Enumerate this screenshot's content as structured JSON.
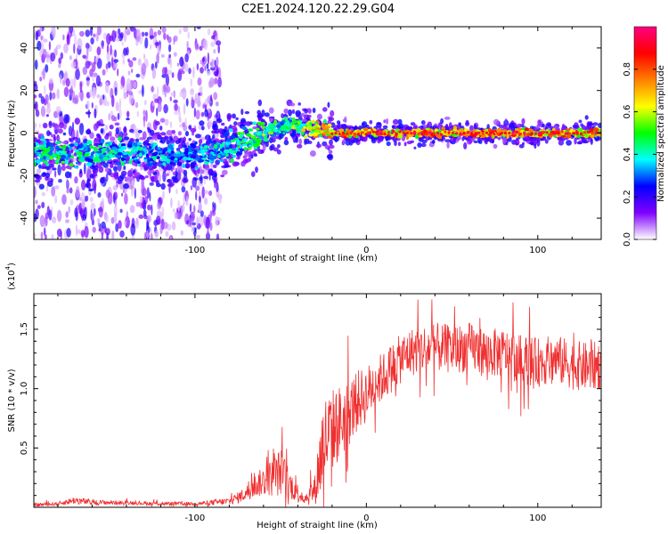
{
  "title": "C2E1.2024.120.22.29.G04",
  "chart_data": [
    {
      "type": "heatmap",
      "xlabel": "Height of straight line (km)",
      "ylabel": "Frequency (Hz)",
      "xlim": [
        -194,
        137
      ],
      "ylim": [
        -50,
        50
      ],
      "xticks": [
        -100,
        0,
        100
      ],
      "yticks": [
        -40,
        -20,
        0,
        20,
        40
      ],
      "colorbar": {
        "label": "Normalized spectral amplitude",
        "range": [
          0,
          1
        ],
        "ticks": [
          0.0,
          0.2,
          0.4,
          0.6,
          0.8
        ],
        "tick_labels": [
          "0.0",
          "0.2",
          "0.4",
          "0.6",
          "0.8"
        ],
        "colors": [
          "#ffffff",
          "#8000ff",
          "#0000ff",
          "#00ffff",
          "#00ff00",
          "#ffff00",
          "#ff8000",
          "#ff0000",
          "#ff0080"
        ]
      },
      "ridge": {
        "x": [
          -194,
          -180,
          -160,
          -140,
          -120,
          -100,
          -90,
          -80,
          -70,
          -60,
          -50,
          -45,
          -40,
          -35,
          -30,
          -25,
          -20,
          -10,
          0,
          10,
          20,
          30,
          40,
          50,
          60,
          70,
          80,
          90,
          100,
          110,
          120,
          137
        ],
        "y": [
          -9,
          -9,
          -10,
          -9,
          -10,
          -11,
          -9,
          -6,
          -3,
          0,
          3,
          5,
          4,
          3,
          2,
          1,
          0,
          0,
          0,
          0,
          0,
          0,
          0,
          0,
          0,
          0,
          0,
          0,
          0,
          0,
          0,
          0
        ],
        "amplitude": [
          0.45,
          0.5,
          0.45,
          0.42,
          0.4,
          0.35,
          0.4,
          0.45,
          0.5,
          0.55,
          0.5,
          0.5,
          0.6,
          0.65,
          0.7,
          0.75,
          0.8,
          0.85,
          0.85,
          0.85,
          0.85,
          0.85,
          0.85,
          0.85,
          0.85,
          0.85,
          0.85,
          0.85,
          0.85,
          0.85,
          0.85,
          0.85
        ]
      },
      "noise_region_x": [
        -194,
        -85
      ]
    },
    {
      "type": "line",
      "xlabel": "Height of straight line (km)",
      "ylabel": "SNR (10 * v/v)",
      "y_multiplier_label": "(x10",
      "y_multiplier_exp": "4",
      "xlim": [
        -194,
        137
      ],
      "ylim": [
        0,
        1.8
      ],
      "xticks": [
        -100,
        0,
        100
      ],
      "yticks": [
        0.5,
        1.0,
        1.5
      ],
      "color": "#f03030",
      "envelope": {
        "x": [
          -194,
          -180,
          -170,
          -160,
          -140,
          -120,
          -100,
          -90,
          -80,
          -75,
          -70,
          -65,
          -60,
          -55,
          -50,
          -45,
          -40,
          -35,
          -30,
          -27,
          -25,
          -20,
          -15,
          -10,
          -5,
          0,
          5,
          10,
          15,
          20,
          25,
          30,
          40,
          50,
          60,
          70,
          80,
          90,
          100,
          110,
          120,
          130,
          137
        ],
        "y": [
          0.02,
          0.03,
          0.06,
          0.04,
          0.04,
          0.03,
          0.03,
          0.04,
          0.05,
          0.08,
          0.12,
          0.18,
          0.22,
          0.25,
          0.3,
          0.2,
          0.12,
          0.08,
          0.15,
          0.4,
          0.55,
          0.65,
          0.72,
          0.8,
          0.9,
          0.95,
          1.05,
          1.1,
          1.18,
          1.25,
          1.3,
          1.33,
          1.35,
          1.33,
          1.35,
          1.3,
          1.3,
          1.25,
          1.22,
          1.25,
          1.2,
          1.18,
          1.2
        ]
      },
      "noise": [
        0.01,
        0.01,
        0.02,
        0.015,
        0.01,
        0.01,
        0.01,
        0.015,
        0.02,
        0.03,
        0.04,
        0.06,
        0.08,
        0.1,
        0.13,
        0.08,
        0.05,
        0.04,
        0.08,
        0.22,
        0.25,
        0.22,
        0.2,
        0.18,
        0.16,
        0.15,
        0.14,
        0.13,
        0.13,
        0.13,
        0.13,
        0.13,
        0.13,
        0.13,
        0.13,
        0.13,
        0.13,
        0.13,
        0.13,
        0.13,
        0.13,
        0.13,
        0.13
      ]
    }
  ]
}
